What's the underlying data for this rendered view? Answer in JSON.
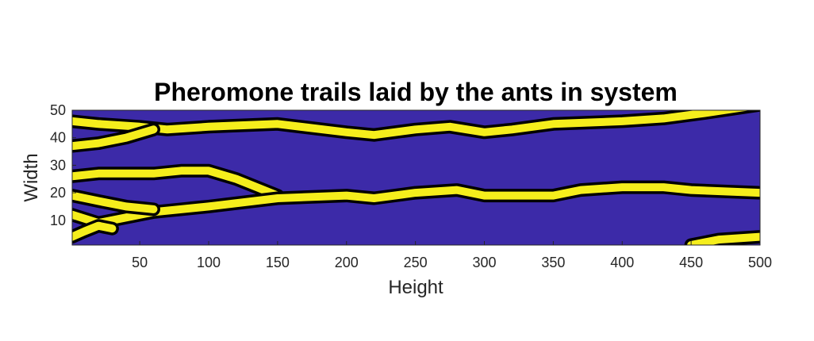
{
  "chart_data": {
    "type": "heatmap",
    "title": "Pheromone trails laid by the ants in system",
    "xlabel": "Height",
    "ylabel": "Width",
    "xlim": [
      1,
      500
    ],
    "ylim": [
      1,
      50
    ],
    "xticks": [
      50,
      100,
      150,
      200,
      250,
      300,
      350,
      400,
      450,
      500
    ],
    "yticks": [
      10,
      20,
      30,
      40,
      50
    ],
    "colors": {
      "background": "#3c2aa8",
      "trail": "#f5ee1c",
      "contour": "#000000"
    },
    "trails": [
      {
        "x": [
          1,
          20,
          50,
          70,
          100,
          150,
          200,
          220,
          250,
          275,
          300,
          320,
          350,
          400,
          430,
          460,
          500
        ],
        "y": [
          46,
          45,
          44,
          43,
          44,
          45,
          42,
          41,
          43,
          44,
          42,
          43,
          45,
          46,
          47,
          49,
          52
        ]
      },
      {
        "x": [
          1,
          20,
          40,
          60
        ],
        "y": [
          37,
          38,
          40,
          43
        ]
      },
      {
        "x": [
          1,
          20,
          40,
          60,
          80,
          100,
          120,
          140,
          150
        ],
        "y": [
          26,
          27,
          27,
          27,
          28,
          28,
          25,
          21,
          19
        ]
      },
      {
        "x": [
          1,
          20,
          40,
          60,
          80,
          100,
          150,
          200,
          220,
          250,
          280,
          300,
          350,
          370,
          400,
          430,
          450,
          500
        ],
        "y": [
          12,
          9,
          11,
          13,
          14,
          15,
          18,
          19,
          18,
          20,
          21,
          19,
          19,
          21,
          22,
          22,
          21,
          20
        ]
      },
      {
        "x": [
          1,
          20,
          40,
          60
        ],
        "y": [
          19,
          17,
          15,
          14
        ]
      },
      {
        "x": [
          1,
          10,
          20,
          30
        ],
        "y": [
          4,
          6,
          8,
          7
        ]
      },
      {
        "x": [
          450,
          470,
          500
        ],
        "y": [
          1,
          3,
          4
        ]
      }
    ]
  }
}
